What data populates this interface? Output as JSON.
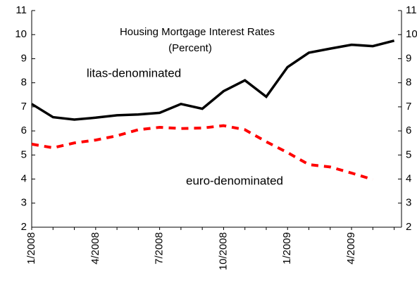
{
  "chart_data": {
    "type": "line",
    "title": "Housing Mortgage Interest Rates",
    "subtitle": "(Percent)",
    "categories": [
      "1/2008",
      null,
      null,
      "4/2008",
      null,
      null,
      "7/2008",
      null,
      null,
      "10/2008",
      null,
      null,
      "1/2009",
      null,
      null,
      "4/2009",
      null,
      null
    ],
    "series": [
      {
        "name": "litas-denominated",
        "color": "#000000",
        "dash": false,
        "values": [
          7.12,
          6.57,
          6.47,
          6.55,
          6.65,
          6.68,
          6.75,
          7.12,
          6.92,
          7.65,
          8.1,
          7.42,
          8.65,
          9.25,
          9.42,
          9.58,
          9.52,
          9.75
        ]
      },
      {
        "name": "euro-denominated",
        "color": "#ff0000",
        "dash": true,
        "values": [
          5.45,
          5.3,
          5.5,
          5.62,
          5.8,
          6.05,
          6.15,
          6.1,
          6.12,
          6.22,
          6.05,
          5.55,
          5.1,
          4.6,
          4.5,
          4.25,
          3.98,
          null
        ]
      }
    ],
    "ylim": [
      2,
      11
    ],
    "yticks": [
      2,
      3,
      4,
      5,
      6,
      7,
      8,
      9,
      10,
      11
    ],
    "grid": false
  }
}
